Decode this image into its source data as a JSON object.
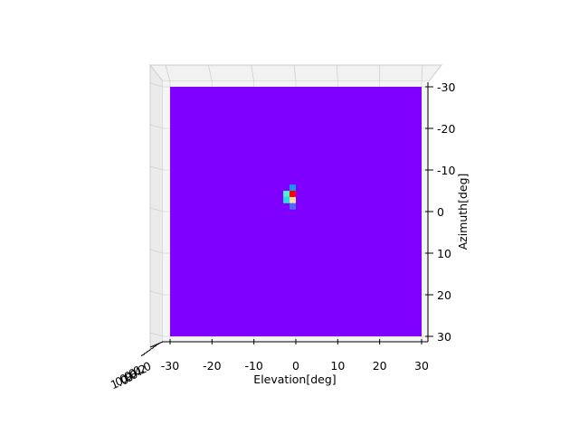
{
  "chart_data": {
    "type": "heatmap",
    "title": "",
    "xlabel": "Elevation[deg]",
    "ylabel": "Azimuth[deg]",
    "zlabel": "",
    "xlim": [
      -30,
      30
    ],
    "ylim": [
      -30,
      30
    ],
    "zlim": [
      0.0,
      1.0
    ],
    "view": "3D axes viewed from top; azimuth increases downward",
    "x_ticks": [
      "-30",
      "-20",
      "-10",
      "0",
      "10",
      "20",
      "30"
    ],
    "y_ticks": [
      "-30",
      "-20",
      "-10",
      "0",
      "10",
      "20",
      "30"
    ],
    "z_ticks": [
      "0.0",
      "0.2",
      "0.4",
      "0.6",
      "0.8",
      "1.0"
    ],
    "colormap": "rainbow",
    "background_color": "#8000ff",
    "bin_size": 1.5,
    "cells": [
      {
        "x": -1.5,
        "y": -6.5,
        "color": "#1996f3"
      },
      {
        "x": -3.0,
        "y": -5.0,
        "color": "#4df3ce"
      },
      {
        "x": -1.5,
        "y": -5.0,
        "color": "#ff0000"
      },
      {
        "x": -3.0,
        "y": -3.5,
        "color": "#2adcdc"
      },
      {
        "x": -1.5,
        "y": -3.5,
        "color": "#f7e0a0"
      },
      {
        "x": -1.5,
        "y": -2.0,
        "color": "#4a6cf7"
      }
    ],
    "grid": true
  }
}
